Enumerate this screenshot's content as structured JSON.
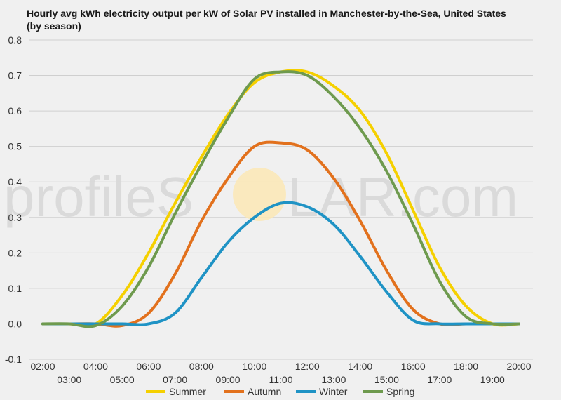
{
  "chart_data": {
    "type": "line",
    "title": "Hourly avg kWh electricity output per kW of Solar PV installed in Manchester-by-the-Sea, United States (by season)",
    "xlabel": "",
    "ylabel": "",
    "ylim": [
      -0.1,
      0.8
    ],
    "grid": true,
    "legend_position": "bottom",
    "y_ticks": [
      "-0.1",
      "0.0",
      "0.1",
      "0.2",
      "0.3",
      "0.4",
      "0.5",
      "0.6",
      "0.7",
      "0.8"
    ],
    "x": [
      "02:00",
      "03:00",
      "04:00",
      "05:00",
      "06:00",
      "07:00",
      "08:00",
      "09:00",
      "10:00",
      "11:00",
      "12:00",
      "13:00",
      "14:00",
      "15:00",
      "16:00",
      "17:00",
      "18:00",
      "19:00",
      "20:00"
    ],
    "series": [
      {
        "name": "Summer",
        "color": "#f5d000",
        "values": [
          0.0,
          0.0,
          0.0,
          0.08,
          0.2,
          0.34,
          0.47,
          0.59,
          0.68,
          0.71,
          0.71,
          0.67,
          0.6,
          0.48,
          0.32,
          0.16,
          0.05,
          0.0,
          0.0
        ]
      },
      {
        "name": "Autumn",
        "color": "#e2711d",
        "values": [
          0.0,
          0.0,
          0.0,
          -0.005,
          0.03,
          0.14,
          0.29,
          0.41,
          0.5,
          0.51,
          0.49,
          0.41,
          0.29,
          0.15,
          0.04,
          0.0,
          0.0,
          0.0,
          0.0
        ]
      },
      {
        "name": "Winter",
        "color": "#1f93c5",
        "values": [
          0.0,
          0.0,
          0.0,
          0.0,
          0.0,
          0.03,
          0.13,
          0.23,
          0.3,
          0.34,
          0.33,
          0.28,
          0.19,
          0.09,
          0.01,
          0.0,
          0.0,
          0.0,
          0.0
        ]
      },
      {
        "name": "Spring",
        "color": "#6e9a4e",
        "values": [
          0.0,
          0.0,
          -0.005,
          0.05,
          0.16,
          0.31,
          0.45,
          0.58,
          0.69,
          0.71,
          0.7,
          0.64,
          0.55,
          0.43,
          0.28,
          0.12,
          0.02,
          0.0,
          0.0
        ]
      }
    ]
  },
  "watermark": {
    "text_left": "profileS",
    "text_right": "LAR.com"
  }
}
